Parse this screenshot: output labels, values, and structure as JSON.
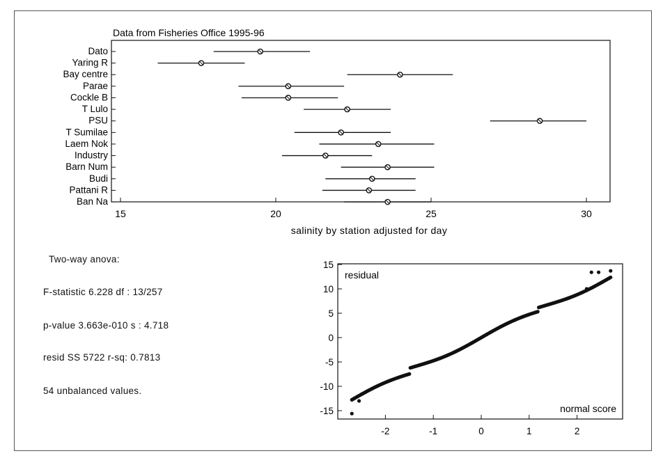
{
  "chart_data": [
    {
      "type": "scatter",
      "title": "Data from Fisheries Office 1995-96",
      "xlabel": "salinity by station adjusted for day",
      "ylabel": "",
      "xlim": [
        15,
        31.2
      ],
      "xticks": [
        15,
        20,
        25,
        30
      ],
      "grid": false,
      "categories": [
        "Dato",
        "Yaring R",
        "Bay centre",
        "Parae",
        "Cockle B",
        "T Lulo",
        "PSU",
        "T Sumilae",
        "Laem Nok",
        "Industry",
        "Barn Num",
        "Budi",
        "Pattani R",
        "Ban Na"
      ],
      "means": [
        19.5,
        17.6,
        24.0,
        20.4,
        20.4,
        22.3,
        28.5,
        22.1,
        23.3,
        21.6,
        23.6,
        23.1,
        23.0,
        23.6
      ],
      "lower": [
        18.0,
        16.2,
        22.3,
        18.8,
        18.9,
        20.9,
        26.9,
        20.6,
        21.4,
        20.2,
        22.1,
        21.6,
        21.5,
        22.2
      ],
      "upper": [
        21.1,
        19.0,
        25.7,
        22.2,
        22.0,
        23.7,
        30.0,
        23.7,
        25.1,
        23.1,
        25.1,
        24.5,
        24.5,
        25.0
      ]
    },
    {
      "type": "scatter",
      "title": "",
      "xlabel": "normal score",
      "ylabel": "residual",
      "xlim": [
        -3,
        3
      ],
      "ylim": [
        -16.5,
        15
      ],
      "xticks": [
        -2,
        -1,
        0,
        1,
        2
      ],
      "yticks": [
        -15,
        -10,
        -5,
        0,
        5,
        10,
        15
      ],
      "grid": false,
      "n_points": 271,
      "x_range": [
        -2.7,
        2.7
      ],
      "trend_line": {
        "intercept": 0,
        "slope": 4.3
      },
      "notable_points": [
        [
          -2.7,
          -15.6
        ],
        [
          -2.55,
          -13.0
        ],
        [
          2.2,
          10.0
        ],
        [
          2.3,
          13.4
        ],
        [
          2.45,
          13.4
        ],
        [
          2.7,
          13.7
        ]
      ]
    }
  ],
  "stats": {
    "title": "Two-way anova:",
    "f_stat": "F-statistic  6.228  df : 13/257",
    "p_value": "p-value  3.663e-010  s : 4.718",
    "resid": "resid SS  5722 r-sq: 0.7813",
    "unbalanced": "54 unbalanced values."
  }
}
